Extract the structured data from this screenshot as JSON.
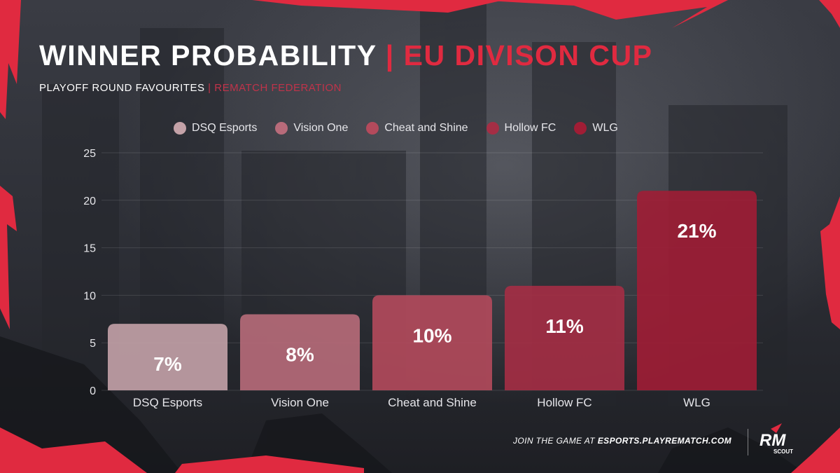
{
  "header": {
    "title": "WINNER PROBABILITY",
    "title_separator": "|",
    "title_accent": "EU DIVISON CUP",
    "subtitle": "PLAYOFF ROUND FAVOURITES",
    "subtitle_separator": "|",
    "subtitle_accent": "REMATCH FEDERATION"
  },
  "footer": {
    "text_prefix": "JOIN THE GAME AT",
    "url": "ESPORTS.PLAYREMATCH.COM"
  },
  "logo": {
    "letters": "RM",
    "tagline": "SCOUT"
  },
  "colors": {
    "accent": "#e02a40",
    "background": "#2b2d33",
    "DSQ Esports": "#c4a2a8",
    "Vision One": "#b86b7a",
    "Cheat and Shine": "#b44a5c",
    "Hollow FC": "#a52e45",
    "WLG": "#a01d35"
  },
  "chart_data": {
    "type": "bar",
    "categories": [
      "DSQ Esports",
      "Vision One",
      "Cheat and Shine",
      "Hollow FC",
      "WLG"
    ],
    "values": [
      7,
      8,
      10,
      11,
      21
    ],
    "value_labels": [
      "7%",
      "8%",
      "10%",
      "11%",
      "21%"
    ],
    "legend": [
      "DSQ Esports",
      "Vision One",
      "Cheat and Shine",
      "Hollow FC",
      "WLG"
    ],
    "legend_position": "top-center",
    "y_ticks": [
      0,
      5,
      10,
      15,
      20,
      25
    ],
    "ylim": [
      0,
      25
    ],
    "grid": true
  }
}
